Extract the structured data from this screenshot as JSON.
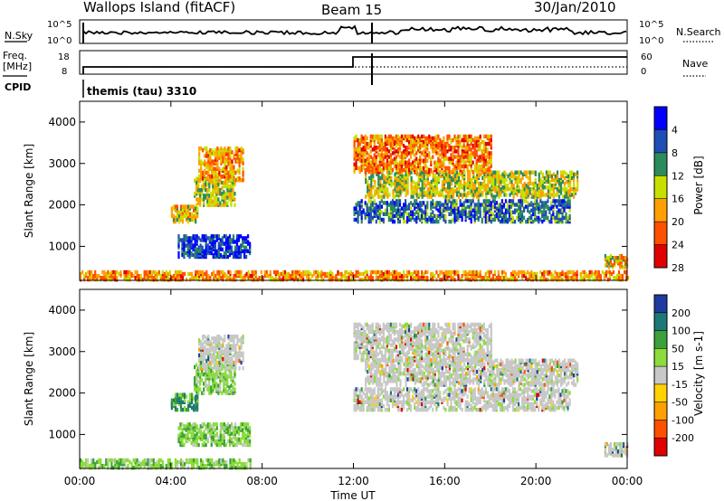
{
  "header": {
    "site": "Wallops Island (fitACF)",
    "beam": "Beam 15",
    "date": "30/Jan/2010"
  },
  "top_panels": {
    "nsky_label": "N.Sky",
    "nsearch_label": "N.Search",
    "noise_ticks_left": [
      "10^5",
      "10^0"
    ],
    "noise_ticks_right": [
      "10^5",
      "10^0"
    ],
    "freq_label_line1": "Freq.",
    "freq_label_line2": "[MHz]",
    "freq_ticks": [
      "18",
      "8"
    ],
    "nave_label": "Nave",
    "nave_ticks": [
      "60",
      "0"
    ],
    "cpid_label": "CPID",
    "cpid_text": "themis (tau) 3310"
  },
  "x_axis": {
    "label": "Time UT",
    "tick_labels": [
      "00:00",
      "04:00",
      "08:00",
      "12:00",
      "16:00",
      "20:00",
      "00:00"
    ]
  },
  "chart_data": [
    {
      "type": "heatmap",
      "name": "power",
      "xlabel": "Time UT",
      "ylabel": "Slant Range [km]",
      "xlim_hours": [
        0,
        24
      ],
      "ylim": [
        180,
        4500
      ],
      "yticks": [
        1000,
        2000,
        3000,
        4000
      ],
      "colorbar": {
        "label": "Power [dB]",
        "tick_labels": [
          "4",
          "8",
          "12",
          "16",
          "20",
          "24",
          "28"
        ],
        "colors": [
          "#0000ff",
          "#1f4fb4",
          "#2a8c5a",
          "#c8e000",
          "#ffa000",
          "#ff5000",
          "#e00000"
        ]
      },
      "echo_regions": [
        {
          "t": [
            0.0,
            24.0
          ],
          "range": [
            200,
            420
          ],
          "level": 0.3
        },
        {
          "t": [
            4.3,
            7.5
          ],
          "range": [
            750,
            1250
          ],
          "level": 0.9
        },
        {
          "t": [
            4.0,
            5.2
          ],
          "range": [
            1600,
            2000
          ],
          "level": 0.4
        },
        {
          "t": [
            5.0,
            6.8
          ],
          "range": [
            2000,
            2700
          ],
          "level": 0.5
        },
        {
          "t": [
            5.2,
            7.2
          ],
          "range": [
            2600,
            3400
          ],
          "level": 0.3
        },
        {
          "t": [
            12.0,
            21.5
          ],
          "range": [
            1600,
            2100
          ],
          "level": 0.75
        },
        {
          "t": [
            12.5,
            21.8
          ],
          "range": [
            2200,
            2800
          ],
          "level": 0.5
        },
        {
          "t": [
            12.0,
            18.0
          ],
          "range": [
            2800,
            3700
          ],
          "level": 0.25
        },
        {
          "t": [
            23.0,
            24.0
          ],
          "range": [
            500,
            800
          ],
          "level": 0.4
        }
      ]
    },
    {
      "type": "heatmap",
      "name": "velocity",
      "xlabel": "Time UT",
      "ylabel": "Slant Range [km]",
      "xlim_hours": [
        0,
        24
      ],
      "ylim": [
        180,
        4500
      ],
      "yticks": [
        1000,
        2000,
        3000,
        4000
      ],
      "colorbar": {
        "label": "Velocity [m s-1]",
        "tick_labels": [
          "200",
          "100",
          "50",
          "15",
          "-15",
          "-50",
          "-100",
          "-200"
        ],
        "colors": [
          "#1e3ca0",
          "#1e7878",
          "#3ca03c",
          "#8cdc3c",
          "#c8c8c8",
          "#ffd200",
          "#ffa000",
          "#ff5000",
          "#e00000"
        ]
      },
      "echo_regions": [
        {
          "t": [
            0.0,
            7.5
          ],
          "range": [
            200,
            400
          ],
          "level": 0.35
        },
        {
          "t": [
            4.3,
            7.5
          ],
          "range": [
            750,
            1250
          ],
          "level": 0.35
        },
        {
          "t": [
            4.0,
            5.2
          ],
          "range": [
            1600,
            2000
          ],
          "level": 0.15
        },
        {
          "t": [
            5.0,
            6.8
          ],
          "range": [
            2000,
            2700
          ],
          "level": 0.35
        },
        {
          "t": [
            5.2,
            7.2
          ],
          "range": [
            2600,
            3400
          ],
          "level": 0.5
        },
        {
          "t": [
            12.0,
            21.5
          ],
          "range": [
            1600,
            2100
          ],
          "level": 0.5
        },
        {
          "t": [
            12.5,
            21.8
          ],
          "range": [
            2200,
            2800
          ],
          "level": 0.5
        },
        {
          "t": [
            12.0,
            18.0
          ],
          "range": [
            2800,
            3700
          ],
          "level": 0.5
        },
        {
          "t": [
            23.0,
            24.0
          ],
          "range": [
            500,
            800
          ],
          "level": 0.5
        }
      ]
    }
  ]
}
